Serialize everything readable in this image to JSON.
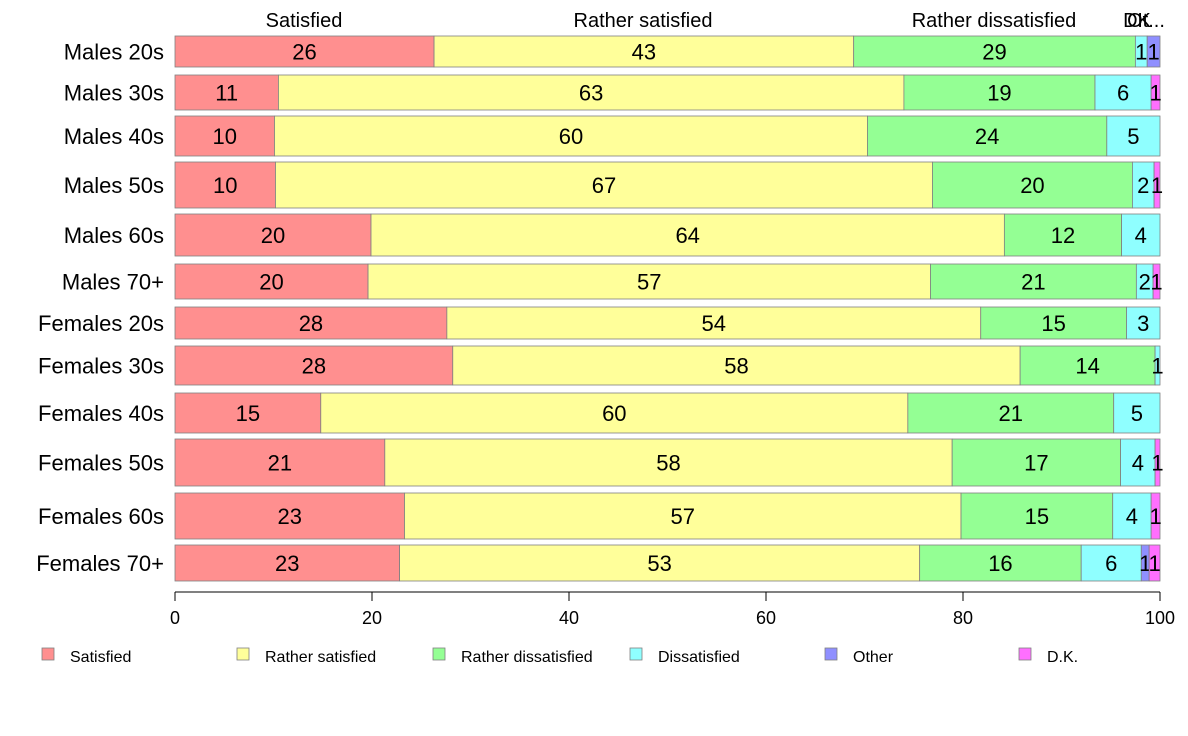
{
  "chart_data": {
    "type": "bar",
    "orientation": "horizontal",
    "stacked": true,
    "categories": [
      "Males 20s",
      "Males 30s",
      "Males 40s",
      "Males 50s",
      "Males 60s",
      "Males 70+",
      "Females 20s",
      "Females 30s",
      "Females 40s",
      "Females 50s",
      "Females 60s",
      "Females 70+"
    ],
    "series": [
      {
        "name": "Satisfied",
        "color": "#ff8f8f",
        "values": [
          26.3,
          10.5,
          10.1,
          10.2,
          19.9,
          19.6,
          27.6,
          28.2,
          14.8,
          21.3,
          23.3,
          22.8
        ]
      },
      {
        "name": "Rather satisfied",
        "color": "#ffff9a",
        "values": [
          42.6,
          63.5,
          60.2,
          66.7,
          64.3,
          57.1,
          54.2,
          57.6,
          59.6,
          57.6,
          56.5,
          52.8
        ]
      },
      {
        "name": "Rather dissatisfied",
        "color": "#94ff94",
        "values": [
          28.6,
          19.4,
          24.3,
          20.3,
          11.9,
          20.9,
          14.8,
          13.7,
          20.9,
          17.1,
          15.4,
          16.4
        ]
      },
      {
        "name": "Dissatisfied",
        "color": "#8fffff",
        "values": [
          1.2,
          5.7,
          5.4,
          2.2,
          3.9,
          1.7,
          3.4,
          0.5,
          4.7,
          3.5,
          3.9,
          6.1
        ]
      },
      {
        "name": "Other",
        "color": "#8f8fff",
        "values": [
          1.3,
          0,
          0,
          0,
          0,
          0,
          0,
          0,
          0,
          0,
          0,
          0.8
        ]
      },
      {
        "name": "D.K.",
        "color": "#ff6fff",
        "values": [
          0,
          0.9,
          0,
          0.6,
          0,
          0.7,
          0,
          0,
          0,
          0.5,
          0.9,
          1.1
        ]
      }
    ],
    "labels": [
      [
        "26",
        "43",
        "29",
        "1",
        "1",
        ""
      ],
      [
        "11",
        "63",
        "19",
        "6",
        "",
        "1"
      ],
      [
        "10",
        "60",
        "24",
        "5",
        "",
        ""
      ],
      [
        "10",
        "67",
        "20",
        "2",
        "",
        "1"
      ],
      [
        "20",
        "64",
        "12",
        "4",
        "",
        ""
      ],
      [
        "20",
        "57",
        "21",
        "2",
        "",
        "1"
      ],
      [
        "28",
        "54",
        "15",
        "3",
        "",
        ""
      ],
      [
        "28",
        "58",
        "14",
        "1",
        "",
        ""
      ],
      [
        "15",
        "60",
        "21",
        "5",
        "",
        ""
      ],
      [
        "21",
        "58",
        "17",
        "4",
        "",
        "1"
      ],
      [
        "23",
        "57",
        "15",
        "4",
        "",
        "1"
      ],
      [
        "23",
        "53",
        "16",
        "6",
        "1",
        "1"
      ]
    ],
    "top_labels": [
      "Satisfied",
      "Rather satisfied",
      "Rather dissatisfied",
      "DK",
      "Ot..."
    ],
    "xlim": [
      0,
      100
    ],
    "xticks": [
      0,
      20,
      40,
      60,
      80,
      100
    ],
    "legend": {
      "position": "bottom",
      "items": [
        "Satisfied",
        "Rather satisfied",
        "Rather dissatisfied",
        "Dissatisfied",
        "Other",
        "D.K."
      ]
    }
  }
}
